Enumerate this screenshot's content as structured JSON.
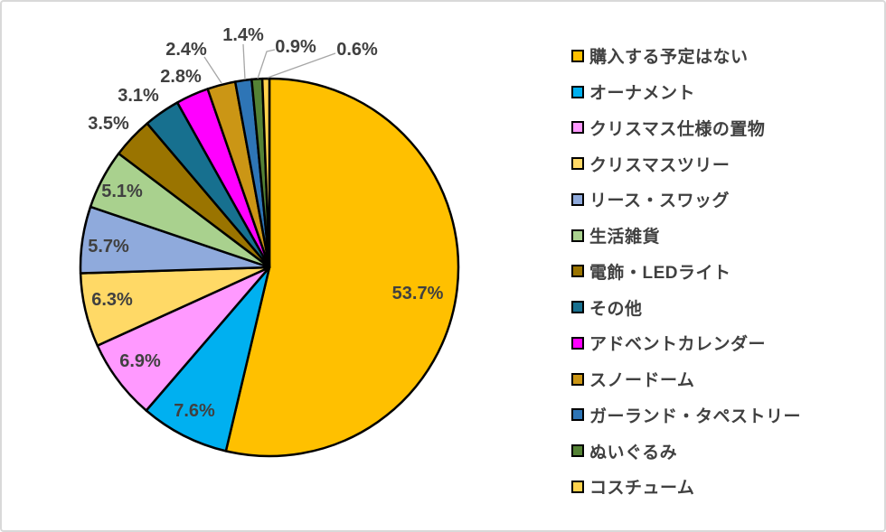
{
  "chart_data": {
    "type": "pie",
    "title": "",
    "legend_position": "right",
    "start_angle_deg": 0,
    "direction": "clockwise",
    "categories": [
      "購入する予定はない",
      "オーナメント",
      "クリスマス仕様の置物",
      "クリスマスツリー",
      "リース・スワッグ",
      "生活雑貨",
      "電飾・LEDライト",
      "その他",
      "アドベントカレンダー",
      "スノードーム",
      "ガーランド・タペストリー",
      "ぬいぐるみ",
      "コスチューム"
    ],
    "values": [
      53.7,
      7.6,
      6.9,
      6.3,
      5.7,
      5.1,
      3.5,
      3.1,
      2.8,
      2.4,
      1.4,
      0.9,
      0.6
    ],
    "data_labels": [
      "53.7%",
      "7.6%",
      "6.9%",
      "6.3%",
      "5.7%",
      "5.1%",
      "3.5%",
      "3.1%",
      "2.8%",
      "2.4%",
      "1.4%",
      "0.9%",
      "0.6%"
    ],
    "colors": [
      "#FFC000",
      "#00B0F0",
      "#FF99FF",
      "#FFD966",
      "#8FAADC",
      "#A9D18E",
      "#9A7400",
      "#17708F",
      "#FF00FF",
      "#CB9615",
      "#2E75B6",
      "#548235",
      "#FFD34D"
    ],
    "slice_border_color": "#000000",
    "label_color": "#404040",
    "leader_line_color": "#A6A6A6",
    "background": "#FFFFFF",
    "canvas_border_color": "#D9D9D9"
  }
}
